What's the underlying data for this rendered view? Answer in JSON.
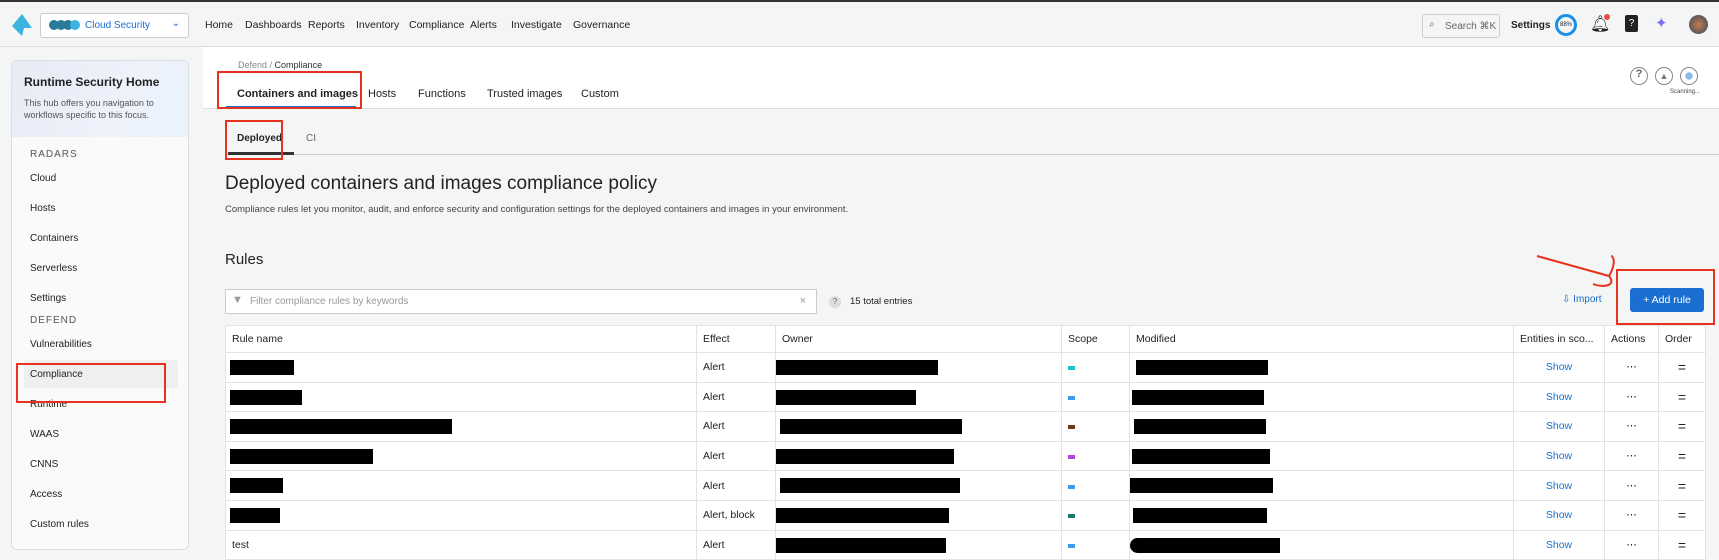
{
  "topbar": {
    "product": "Cloud Security",
    "nav": [
      "Home",
      "Dashboards",
      "Reports",
      "Inventory",
      "Compliance",
      "Alerts",
      "Investigate",
      "Governance"
    ],
    "search_label": "Search",
    "search_shortcut": "⌘K",
    "settings": "Settings",
    "progress_label": "88%",
    "progress_value": 88
  },
  "sidebar": {
    "title": "Runtime Security Home",
    "subtitle": "This hub offers you navigation to workflows specific to this focus.",
    "sections": [
      {
        "label": "RADARS",
        "items": [
          "Cloud",
          "Hosts",
          "Containers",
          "Serverless",
          "Settings"
        ]
      },
      {
        "label": "DEFEND",
        "items": [
          "Vulnerabilities",
          "Compliance",
          "Runtime",
          "WAAS",
          "CNNS",
          "Access",
          "Custom rules"
        ]
      }
    ],
    "active": "Compliance"
  },
  "breadcrumb": {
    "parent": "Defend",
    "current": "Compliance"
  },
  "tabs": [
    "Containers and images",
    "Hosts",
    "Functions",
    "Trusted images",
    "Custom"
  ],
  "active_tab": "Containers and images",
  "subtabs": [
    "Deployed",
    "CI"
  ],
  "scanning": "Scanning...",
  "page": {
    "title": "Deployed containers and images compliance policy",
    "description": "Compliance rules let you monitor, audit, and enforce security and configuration settings for the deployed containers and images in your environment.",
    "rules_heading": "Rules",
    "filter_placeholder": "Filter compliance rules by keywords",
    "total_entries": "15 total entries",
    "import": "Import",
    "add_rule": "+ Add rule"
  },
  "table": {
    "columns": [
      "Rule name",
      "Effect",
      "Owner",
      "Scope",
      "Modified",
      "Entities in sco...",
      "Actions",
      "Order"
    ],
    "rows": [
      {
        "name": "",
        "effect": "Alert",
        "scope_color": "#1cc6c0",
        "show": "Show"
      },
      {
        "name": "",
        "effect": "Alert",
        "scope_color": "#3d9be9",
        "show": "Show"
      },
      {
        "name": "",
        "effect": "Alert",
        "scope_color": "#6b3a1e",
        "show": "Show"
      },
      {
        "name": "",
        "effect": "Alert",
        "scope_color": "#b443d6",
        "show": "Show"
      },
      {
        "name": "",
        "effect": "Alert",
        "scope_color": "#3d9be9",
        "show": "Show"
      },
      {
        "name": "",
        "effect": "Alert, block",
        "scope_color": "#1a7a6e",
        "show": "Show"
      },
      {
        "name": "test",
        "effect": "Alert",
        "scope_color": "#3d9be9",
        "show": "Show"
      }
    ]
  },
  "colors": {
    "accent": "#1a6fd1",
    "annotation": "#e8321e"
  }
}
